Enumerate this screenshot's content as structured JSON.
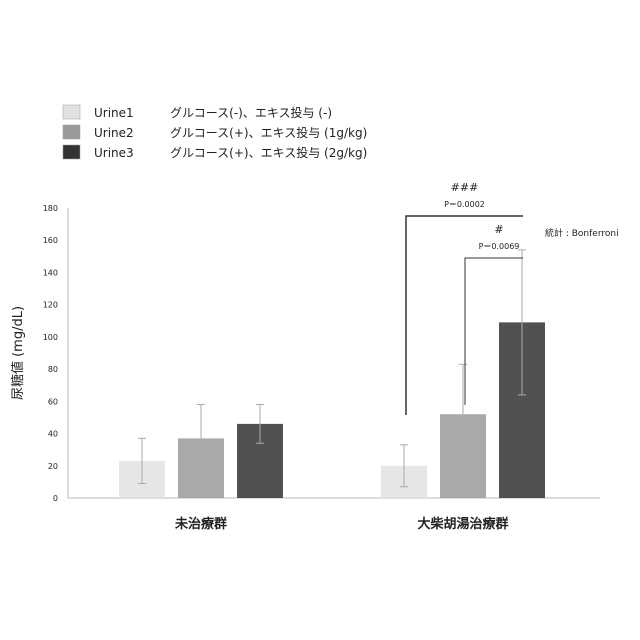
{
  "chart_data": {
    "type": "bar",
    "title": "",
    "ylabel": "尿糖値 (mg/dL)",
    "xlabel": "",
    "ylim": [
      0,
      180
    ],
    "yticks": [
      0,
      20,
      40,
      60,
      80,
      100,
      120,
      140,
      160,
      180
    ],
    "grid": false,
    "legend_position": "top-left",
    "categories": [
      "未治療群",
      "大柴胡湯治療群"
    ],
    "series": [
      {
        "name": "Urine1",
        "label": "グルコース(-)、エキス投与 (-)",
        "color": "#e2e2e2",
        "values": [
          23,
          20
        ],
        "errors": [
          14,
          13
        ]
      },
      {
        "name": "Urine2",
        "label": "グルコース(+)、エキス投与 (1g/kg)",
        "color": "#9a9a9a",
        "values": [
          37,
          52
        ],
        "errors": [
          21,
          31
        ]
      },
      {
        "name": "Urine3",
        "label": "グルコース(+)、エキス投与 (2g/kg)",
        "color": "#333333",
        "values": [
          46,
          109
        ],
        "errors": [
          12,
          45
        ]
      }
    ],
    "annotations": [
      {
        "mark": "###",
        "p": "P＝0.0002",
        "category": "大柴胡湯治療群",
        "from": "Urine1",
        "to": "Urine3",
        "level": 175
      },
      {
        "mark": "#",
        "p": "P＝0.0069",
        "category": "大柴胡湯治療群",
        "from": "Urine2",
        "to": "Urine3",
        "level": 149
      }
    ],
    "note": "統計 : Bonferroni"
  }
}
